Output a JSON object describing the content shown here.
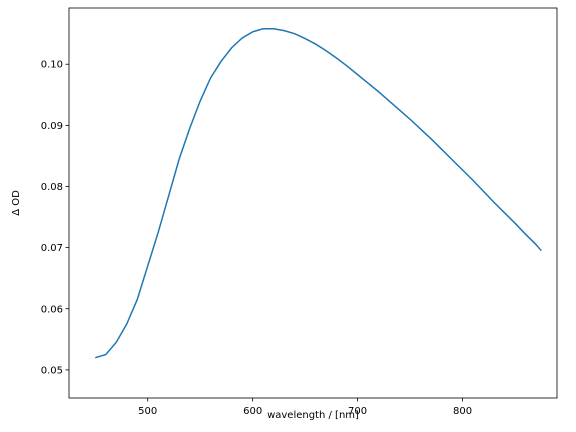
{
  "chart_data": {
    "type": "line",
    "xlabel": "wavelength / [nm]",
    "ylabel": "Δ OD",
    "x": [
      450,
      460,
      470,
      480,
      490,
      500,
      510,
      520,
      530,
      540,
      550,
      560,
      570,
      580,
      590,
      600,
      610,
      620,
      630,
      640,
      650,
      660,
      670,
      680,
      690,
      700,
      710,
      720,
      730,
      740,
      750,
      760,
      770,
      780,
      790,
      800,
      810,
      820,
      830,
      840,
      850,
      860,
      870,
      875
    ],
    "series": [
      {
        "color": "#1f77b4",
        "values": [
          0.052,
          0.0525,
          0.0545,
          0.0575,
          0.0615,
          0.067,
          0.0725,
          0.0785,
          0.0845,
          0.0895,
          0.094,
          0.0978,
          0.1005,
          0.1027,
          0.1043,
          0.1053,
          0.1058,
          0.1058,
          0.1055,
          0.105,
          0.1042,
          0.1033,
          0.1022,
          0.101,
          0.0997,
          0.0983,
          0.0969,
          0.0955,
          0.094,
          0.0925,
          0.091,
          0.0894,
          0.0878,
          0.0861,
          0.0844,
          0.0827,
          0.081,
          0.0792,
          0.0774,
          0.0757,
          0.074,
          0.0722,
          0.0705,
          0.0695
        ]
      }
    ],
    "xlim": [
      425,
      890
    ],
    "ylim": [
      0.0454,
      0.1092
    ],
    "xticks": [
      500,
      600,
      700,
      800
    ],
    "yticks": [
      0.05,
      0.06,
      0.07,
      0.08,
      0.09,
      {
        "value": 0.1,
        "label": "0.10"
      }
    ]
  }
}
